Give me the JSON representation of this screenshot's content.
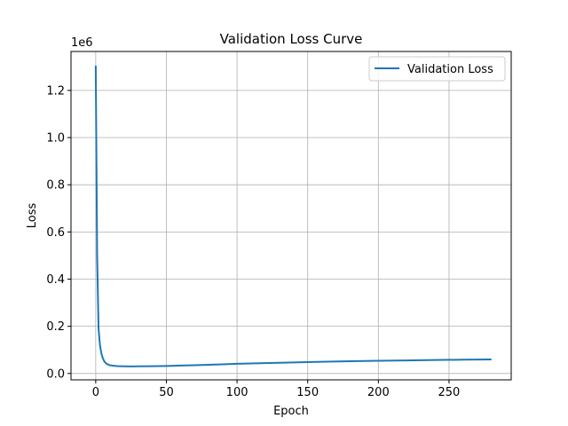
{
  "chart_data": {
    "type": "line",
    "title": "Validation Loss Curve",
    "xlabel": "Epoch",
    "ylabel": "Loss",
    "y_offset_label": "1e6",
    "xlim": [
      -17.5,
      294
    ],
    "ylim": [
      -27000,
      1365000
    ],
    "x_ticks": [
      0,
      50,
      100,
      150,
      200,
      250
    ],
    "x_tick_labels": [
      "0",
      "50",
      "100",
      "150",
      "200",
      "250"
    ],
    "y_ticks": [
      0,
      200000,
      400000,
      600000,
      800000,
      1000000,
      1200000
    ],
    "y_tick_labels": [
      "0.0",
      "0.2",
      "0.4",
      "0.6",
      "0.8",
      "1.0",
      "1.2"
    ],
    "grid": true,
    "legend_position": "top-right",
    "series": [
      {
        "name": "Validation Loss",
        "color": "#1f77b4",
        "x": [
          0,
          1,
          2,
          3,
          4,
          5,
          6,
          7,
          8,
          10,
          12,
          15,
          20,
          25,
          30,
          40,
          50,
          60,
          70,
          80,
          90,
          100,
          120,
          140,
          160,
          180,
          200,
          220,
          240,
          260,
          280
        ],
        "y": [
          1305000,
          500000,
          190000,
          120000,
          85000,
          65000,
          52000,
          45000,
          40000,
          35000,
          33000,
          31500,
          30500,
          30000,
          30200,
          31000,
          32000,
          33500,
          35000,
          37000,
          39000,
          41000,
          44000,
          47000,
          49500,
          52000,
          54000,
          55500,
          57000,
          58500,
          59500
        ]
      }
    ]
  }
}
